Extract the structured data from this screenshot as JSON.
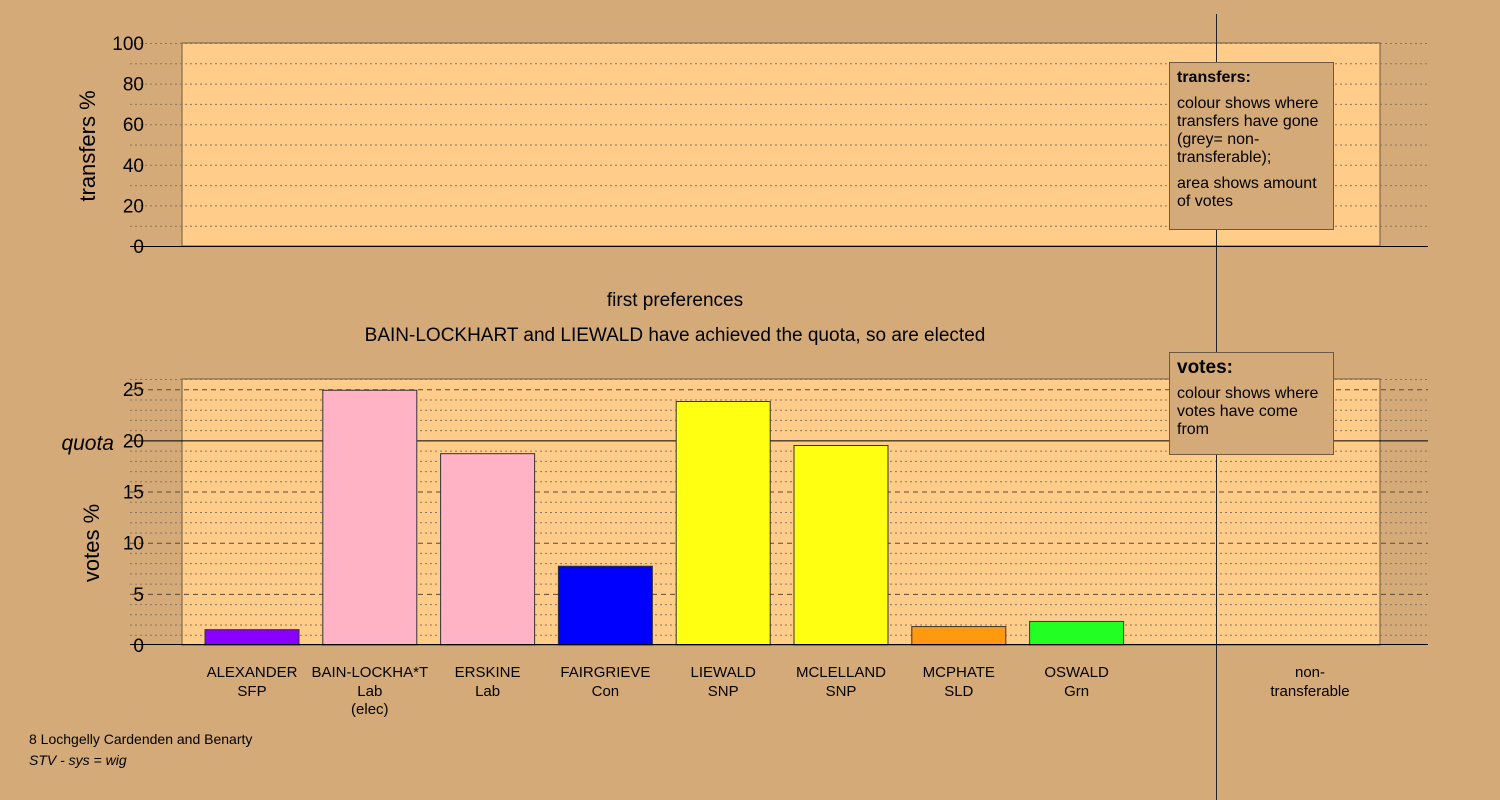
{
  "chart_data": [
    {
      "type": "bar",
      "panel": "transfers",
      "ylabel": "transfers %",
      "ylim": [
        0,
        100
      ],
      "yticks": [
        0,
        20,
        40,
        60,
        80,
        100
      ],
      "minor_step": 10,
      "categories": [],
      "values": [],
      "legend": {
        "title": "transfers:",
        "lines": [
          "colour shows where transfers have gone (grey= non-transferable);",
          "area shows amount of votes"
        ],
        "placement": "top-right"
      }
    },
    {
      "type": "bar",
      "panel": "votes",
      "title": "first preferences",
      "subtitle": "BAIN-LOCKHART and LIEWALD have achieved the quota, so are elected",
      "ylabel": "votes %",
      "ylim": [
        0,
        26
      ],
      "yticks": [
        0,
        5,
        10,
        15,
        20,
        25
      ],
      "minor_step": 1,
      "quota": 20,
      "quota_label": "quota",
      "categories": [
        {
          "name": "ALEXANDER",
          "party": "SFP",
          "note": ""
        },
        {
          "name": "BAIN-LOCKHA*T",
          "party": "Lab",
          "note": "(elec)"
        },
        {
          "name": "ERSKINE",
          "party": "Lab",
          "note": ""
        },
        {
          "name": "FAIRGRIEVE",
          "party": "Con",
          "note": ""
        },
        {
          "name": "LIEWALD",
          "party": "SNP",
          "note": ""
        },
        {
          "name": "MCLELLAND",
          "party": "SNP",
          "note": ""
        },
        {
          "name": "MCPHATE",
          "party": "SLD",
          "note": ""
        },
        {
          "name": "OSWALD",
          "party": "Grn",
          "note": ""
        }
      ],
      "values": [
        1.5,
        24.9,
        18.7,
        7.7,
        23.8,
        19.5,
        1.8,
        2.3
      ],
      "colors": [
        "#8800ff",
        "#ffb3c4",
        "#ffb3c4",
        "#0000ff",
        "#ffff11",
        "#ffff11",
        "#ff9a10",
        "#22ff22"
      ],
      "extra_column": {
        "line1": "non-",
        "line2": "transferable"
      },
      "legend": {
        "title": "votes:",
        "lines": [
          "colour shows where votes have come from"
        ],
        "placement": "top-right"
      }
    }
  ],
  "footer": {
    "ward": "8 Lochgelly Cardenden and Benarty",
    "system": "STV - sys = wig"
  }
}
